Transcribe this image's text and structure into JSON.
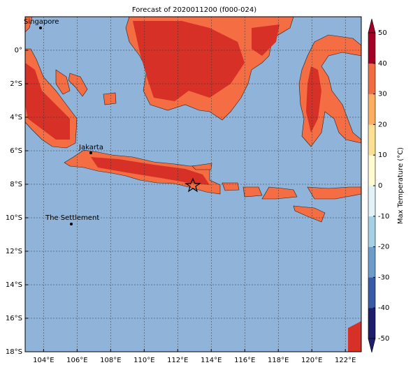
{
  "title": "Forecast of 2020011200 (f000-024)",
  "map": {
    "xlim": [
      102.9,
      122.95
    ],
    "ylim": [
      -18,
      2
    ],
    "grid": true,
    "xticks": [
      {
        "value": 104,
        "label": "104°E"
      },
      {
        "value": 106,
        "label": "106°E"
      },
      {
        "value": 108,
        "label": "108°E"
      },
      {
        "value": 110,
        "label": "110°E"
      },
      {
        "value": 112,
        "label": "112°E"
      },
      {
        "value": 114,
        "label": "114°E"
      },
      {
        "value": 116,
        "label": "116°E"
      },
      {
        "value": 118,
        "label": "118°E"
      },
      {
        "value": 120,
        "label": "120°E"
      },
      {
        "value": 122,
        "label": "122°E"
      }
    ],
    "yticks": [
      {
        "value": 0,
        "label": "0°"
      },
      {
        "value": -2,
        "label": "2°S"
      },
      {
        "value": -4,
        "label": "4°S"
      },
      {
        "value": -6,
        "label": "6°S"
      },
      {
        "value": -8,
        "label": "8°S"
      },
      {
        "value": -10,
        "label": "10°S"
      },
      {
        "value": -12,
        "label": "12°S"
      },
      {
        "value": -14,
        "label": "14°S"
      },
      {
        "value": -16,
        "label": "16°S"
      },
      {
        "value": -18,
        "label": "18°S"
      }
    ],
    "places": [
      "Singapore",
      "Jakarta",
      "The Settlement"
    ]
  },
  "colorbar": {
    "label": "Max Temperature (°C)",
    "ticks": [
      50,
      40,
      30,
      20,
      10,
      0,
      -10,
      -20,
      -30,
      -40,
      -50
    ],
    "colors": [
      "#1c1d6b",
      "#3a5aa6",
      "#6b9ccb",
      "#a6d0e4",
      "#e2f3f8",
      "#fffbd0",
      "#fde092",
      "#fdae61",
      "#f16c43",
      "#d42f27",
      "#a50026"
    ]
  }
}
